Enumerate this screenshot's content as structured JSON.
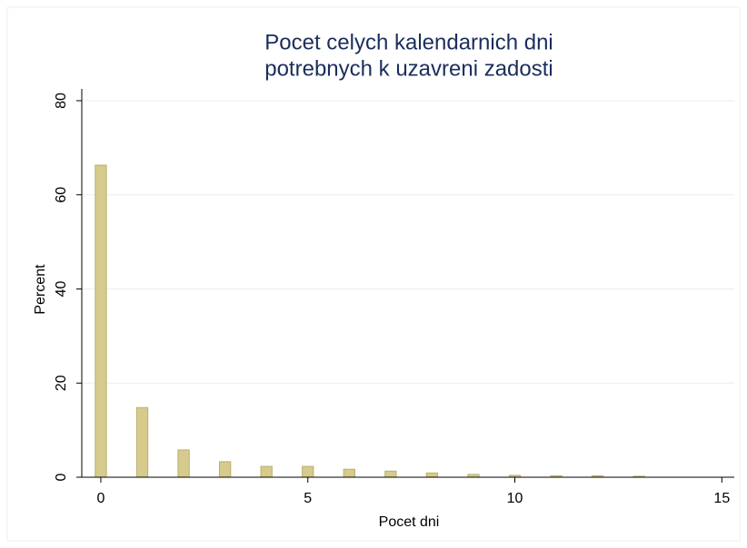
{
  "chart_data": {
    "type": "bar",
    "title": [
      "Pocet celych kalendarnich dni",
      "potrebnych k uzavreni zadosti"
    ],
    "x_label": "Pocet dni",
    "y_label": "Percent",
    "x": [
      0,
      1,
      2,
      3,
      4,
      5,
      6,
      7,
      8,
      9,
      10,
      11,
      12,
      13
    ],
    "values": [
      66.3,
      14.8,
      5.8,
      3.3,
      2.3,
      2.3,
      1.7,
      1.3,
      0.9,
      0.6,
      0.4,
      0.3,
      0.3,
      0.2
    ],
    "color": "#d6cb8c",
    "xlim": [
      -0.46,
      15.3
    ],
    "xticks": [
      0,
      5,
      10,
      15
    ],
    "ylim": [
      0,
      82.5
    ],
    "yticks": [
      0,
      20,
      40,
      60,
      80
    ],
    "grid": true
  }
}
